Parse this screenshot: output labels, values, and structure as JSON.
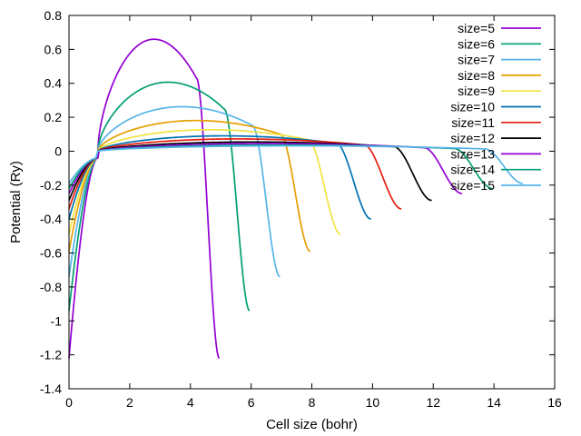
{
  "chart_data": {
    "type": "line",
    "title": "",
    "xlabel": "Cell size (bohr)",
    "ylabel": "Potential (Ry)",
    "xlim": [
      0,
      16
    ],
    "ylim": [
      -1.4,
      0.8
    ],
    "xticks": [
      0,
      2,
      4,
      6,
      8,
      10,
      12,
      14,
      16
    ],
    "yticks": [
      -1.4,
      -1.2,
      -1,
      -0.8,
      -0.6,
      -0.4,
      -0.2,
      0,
      0.2,
      0.4,
      0.6,
      0.8
    ],
    "grid": false,
    "legend_position": "top-right",
    "series": [
      {
        "name": "size=5",
        "color": "#9400d3",
        "x_end": 4.95,
        "y0": -1.22,
        "peak": 0.73,
        "x_peak": 2.5,
        "y_end": -1.22
      },
      {
        "name": "size=6",
        "color": "#009e73",
        "x_end": 5.95,
        "y0": -0.94,
        "peak": 0.45,
        "x_peak": 3.0,
        "y_end": -0.94
      },
      {
        "name": "size=7",
        "color": "#56b4e9",
        "x_end": 6.95,
        "y0": -0.74,
        "peak": 0.29,
        "x_peak": 3.5,
        "y_end": -0.74
      },
      {
        "name": "size=8",
        "color": "#e69f00",
        "x_end": 7.95,
        "y0": -0.59,
        "peak": 0.2,
        "x_peak": 4.0,
        "y_end": -0.59
      },
      {
        "name": "size=9",
        "color": "#f0e442",
        "x_end": 8.95,
        "y0": -0.49,
        "peak": 0.14,
        "x_peak": 4.5,
        "y_end": -0.49
      },
      {
        "name": "size=10",
        "color": "#0072b2",
        "x_end": 9.95,
        "y0": -0.4,
        "peak": 0.1,
        "x_peak": 5.0,
        "y_end": -0.4
      },
      {
        "name": "size=11",
        "color": "#e51e10",
        "x_end": 10.95,
        "y0": -0.34,
        "peak": 0.08,
        "x_peak": 5.5,
        "y_end": -0.34
      },
      {
        "name": "size=12",
        "color": "#000000",
        "x_end": 11.95,
        "y0": -0.29,
        "peak": 0.06,
        "x_peak": 6.0,
        "y_end": -0.29
      },
      {
        "name": "size=13",
        "color": "#9400d3",
        "x_end": 12.95,
        "y0": -0.25,
        "peak": 0.05,
        "x_peak": 6.5,
        "y_end": -0.25
      },
      {
        "name": "size=14",
        "color": "#009e73",
        "x_end": 13.95,
        "y0": -0.22,
        "peak": 0.04,
        "x_peak": 7.0,
        "y_end": -0.22
      },
      {
        "name": "size=15",
        "color": "#56b4e9",
        "x_end": 14.95,
        "y0": -0.19,
        "peak": 0.035,
        "x_peak": 7.5,
        "y_end": -0.19
      }
    ]
  }
}
